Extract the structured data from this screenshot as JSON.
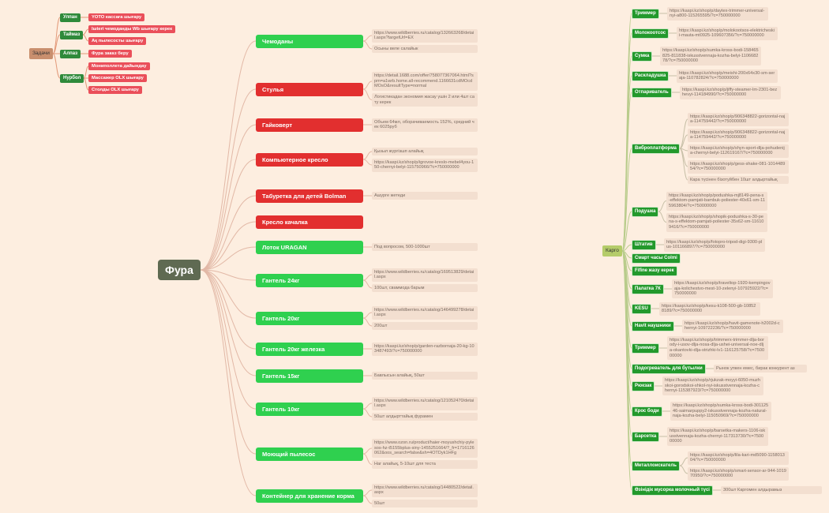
{
  "tasks": {
    "label": "Задачи",
    "people": [
      {
        "name": "Улпан",
        "tasks": [
          "YOTO кассаға шығару"
        ]
      },
      {
        "name": "Таймаз",
        "tasks": [
          "Iшteri чемоданды Wb шығару керек",
          "Ақ пылесосты шығару"
        ]
      },
      {
        "name": "Алпаз",
        "tasks": [
          "Фура заказ беру"
        ]
      },
      {
        "name": "Нурбол",
        "tasks": [
          "Мониполлета дайындау",
          "Массажер OLX шығару",
          "Столды OLX шығару"
        ]
      }
    ]
  },
  "center": {
    "label": "Фура",
    "items": [
      {
        "name": "Чемоданы",
        "color": "#2fd04f",
        "notes": [
          "https://www.wildberries.ru/catalog/132663268/detail.aspx?targetUrl=EX",
          "Осыны веле салайык"
        ]
      },
      {
        "name": "Стулья",
        "color": "#e22f2f",
        "notes": [
          "https://detail.1688.com/offer/758077367064.html?spm=a1wrb.home.all-recommend.1166631cdMOcdMOsO&resultType=normal",
          "Логистикадан экономия жасау үшін 2 или 4шт сату керек"
        ]
      },
      {
        "name": "Гайковерт",
        "color": "#e22f2f",
        "notes": [
          "Объем 64мл, оборачиваемость 152%, средний чек 6025руб"
        ]
      },
      {
        "name": "Компьютерное кресло",
        "color": "#e22f2f",
        "notes": [
          "Қызыл жүргізшп алайық",
          "https://kaspi.kz/shop/p/igrovoe-kreslo-mebel4you-150-chernyi-belyi-115750966/?c=750000000"
        ]
      },
      {
        "name": "Табуретка для детей Bolman",
        "color": "#e22f2f",
        "notes": [
          "Ашурге жетеди"
        ]
      },
      {
        "name": "Кресло качалка",
        "color": "#e22f2f",
        "notes": []
      },
      {
        "name": "Лоток URAGAN",
        "color": "#2fd04f",
        "notes": [
          "Под вопросом, 500-1000шт"
        ]
      },
      {
        "name": "Гантель 24кг",
        "color": "#2fd04f",
        "notes": [
          "https://www.wildberries.ru/catalog/169513829/detail.aspx",
          "100шт, сваммода барым"
        ]
      },
      {
        "name": "Гантель 20кг",
        "color": "#2fd04f",
        "notes": [
          "https://www.wildberries.ru/catalog/146499278/detail.aspx",
          "200шт"
        ]
      },
      {
        "name": "Гантель 20кг железка",
        "color": "#2fd04f",
        "notes": [
          "https://kaspi.kz/shop/p/garden-razbornaja-20-kg-103487493/?c=750000000"
        ]
      },
      {
        "name": "Гантель 15кг",
        "color": "#2fd04f",
        "notes": [
          "Бавлысын алайық, 50шт"
        ]
      },
      {
        "name": "Гантель 10кг",
        "color": "#2fd04f",
        "notes": [
          "https://www.wildberries.ru/catalog/121052470/detail.aspx",
          "50шт алдырттайық фурамен"
        ]
      },
      {
        "name": "Моющий пылесос",
        "color": "#2fd04f",
        "notes": [
          "https://www.ozon.ru/product/haier-moyushchiy-pylesos-hz-t5155bplus-siny-1455251664/?_fr=1716126062&oos_search=false&sh=4OTDyk1HFg",
          "Наг алайық, 5-10шт для теста"
        ]
      },
      {
        "name": "Контейнер для хранение корма",
        "color": "#2fd04f",
        "notes": [
          "https://www.wildberries.ru/catalog/14480522/detail.aspx",
          "50шт"
        ]
      }
    ]
  },
  "cargo": {
    "label": "Карго",
    "items": [
      {
        "name": "Триммер",
        "notes": [
          "https://kaspi.kz/shop/p/daytex-trimmer-universal-nyi-a800-115265595/?c=750000000"
        ]
      },
      {
        "name": "Молокоотсос",
        "notes": [
          "https://kaspi.kz/shop/p/molokootsos-elektricheskii-mauta-mt0925-109607356/?c=750000000"
        ]
      },
      {
        "name": "Сумка",
        "notes": [
          "https://kaspi.kz/shop/p/sumka-kross-bodi-158465825-811838-iskusstvennaja-kozha-belyi-110668278/?c=750000000"
        ]
      },
      {
        "name": "Раскладушка",
        "notes": [
          "https://kaspi.kz/shop/p/meishi-200x64x30-sm-seraja-110782824/?c=750000000"
        ]
      },
      {
        "name": "Отпариватель",
        "notes": [
          "https://kaspi.kz/shop/p/jiffy-steamer-lm-2301-bezhevyi-114184990/?c=750000000"
        ]
      },
      {
        "name": "Виброплатформа",
        "notes": [
          "https://kaspi.kz/shop/p/906348822-gorizontal-naja-114759442/?c=750000000",
          "https://kaspi.kz/shop/p/906348822-gorizontal-naja-114759442/?c=750000000",
          "https://kaspi.kz/shop/p/shyn-sport-dlja-pohudenija-chernyi-belyi-112619167/?c=750000000",
          "https://kaspi.kz/shop/p/gess-shake-081-101448954/?c=750000000",
          "Кара түсінен бізотуйбен 10шт алдыртайық"
        ]
      },
      {
        "name": "Подушка",
        "notes": [
          "https://kaspi.kz/shop/p/podushka-mj8149-pena-s-effektom-pamjati-bambuk-poliester-40x61-sm-115963804/?c=750000000",
          "https://kaspi.kz/shop/p/shopik-podushka-s-30-pena-s-effektom-pamjati-poliester-35x62-sm-116109416/?c=750000000"
        ]
      },
      {
        "name": "Штатив",
        "notes": [
          "https://kaspi.kz/shop/p/fotopro-tripod-digi-9300-plus-101166897/?c=750000000"
        ]
      },
      {
        "name": "Смарт часы Colmi",
        "notes": []
      },
      {
        "name": "Fifine жазу керек",
        "notes": []
      },
      {
        "name": "Палатка 7К",
        "notes": [
          "https://kaspi.kz/shop/p/traveltop-1920-kempingovaja-kolichestvo-mest-10-zelenyi-107925922/?c=750000000"
        ]
      },
      {
        "name": "KESU",
        "notes": [
          "https://kaspi.kz/shop/p/kesu-k108-500-gb-108528189/?c=750000000"
        ]
      },
      {
        "name": "Havit наушники",
        "notes": [
          "https://kaspi.kz/shop/p/havit-gamenote-h2002d-chernyi-109722236/?c=750000000"
        ]
      },
      {
        "name": "Триммер",
        "notes": [
          "https://kaspi.kz/shop/p/trimmerx-trimmer-dlja-borody-i-usov-dlja-nosa-dlja-ushei-universal-noe-dlja-okantovki-dlja-strizhki-lv1-116125758/?c=750000000"
        ]
      },
      {
        "name": "Подогреватель для бутылки",
        "notes": [
          "Рынок упкен емес, бирак конкурент аз"
        ]
      },
      {
        "name": "Рюкзак",
        "notes": [
          "https://kaspi.kz/shop/p/rjukzak-moyyi-6050-muzhskoi-gorodskoi-shkol-nyi-iskusstvennaja-kozha-chernyi-115387923/?c=750000000"
        ]
      },
      {
        "name": "Крос боди",
        "notes": [
          "https://kaspi.kz/shop/p/sumka-kross-bodi-30112546-saimarpuppy2-iskusstvennaja-kozha-natural-naja-kozha-belyi-115050969/?c=750000000"
        ]
      },
      {
        "name": "Барсетка",
        "notes": [
          "https://kaspi.kz/shop/p/barsetka-makers-1106-iskusstvennaja-kozha-chernyi-117313730/?c=750000000"
        ]
      },
      {
        "name": "Металлоискатель",
        "notes": [
          "https://kaspi.kz/shop/p/lila-kari-md5090-115801304/?c=750000000",
          "https://kaspi.kz/shop/p/smart-sensor-ar-944-101970950/?c=750000000"
        ]
      },
      {
        "name": "Өзінідік мусорка молочный түсі",
        "notes": [
          "300шт Каргомен алдырамыз"
        ]
      }
    ]
  }
}
